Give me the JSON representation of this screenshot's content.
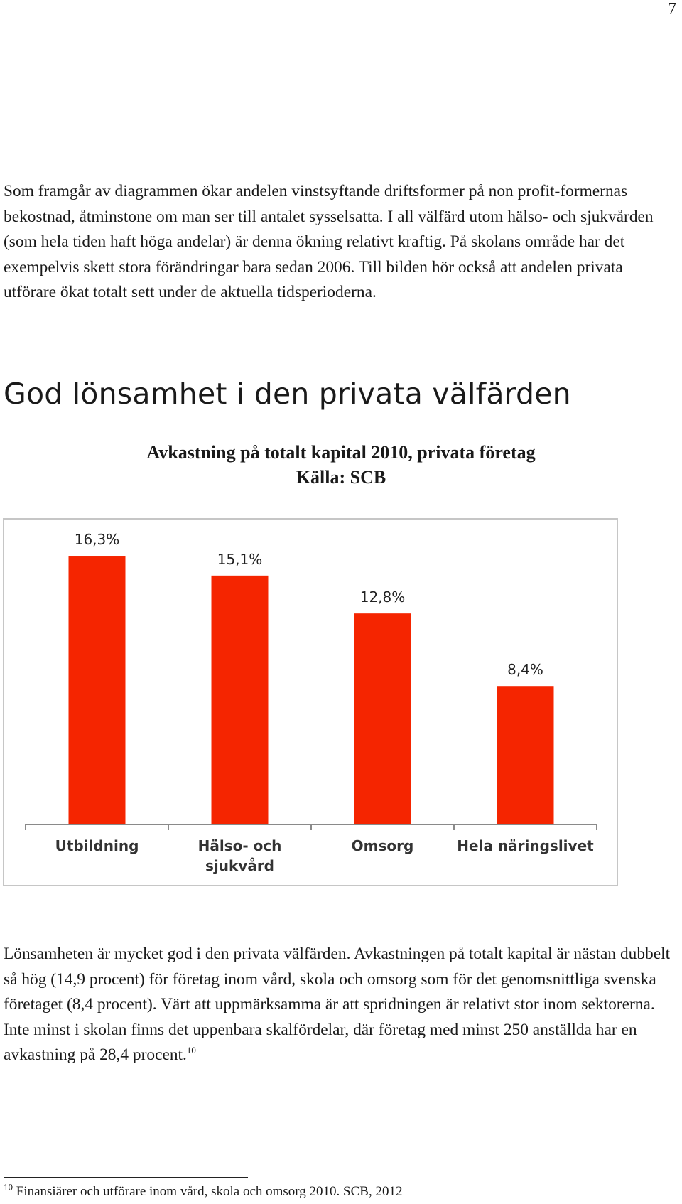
{
  "page_number": "7",
  "intro_paragraph": "Som framgår av diagrammen ökar andelen vinstsyftande driftsformer på non profit-formernas bekostnad, åtminstone om man ser till antalet sysselsatta. I all välfärd utom hälso- och sjukvården (som hela tiden haft höga andelar) är denna ökning relativt kraftig. På skolans område har det exempelvis skett stora förändringar bara sedan 2006. Till bilden hör också att andelen privata utförare ökat totalt sett under de aktuella tidsperioderna.",
  "section_heading": "God lönsamhet i den privata välfärden",
  "chart_title": "Avkastning på totalt kapital 2010, privata företag",
  "chart_source": "Källa: SCB",
  "body_paragraph": "Lönsamheten är mycket god i den privata välfärden. Avkastningen på totalt kapital är nästan dubbelt så hög (14,9 procent) för företag inom vård, skola och omsorg som för det genomsnittliga svenska företaget (8,4 procent). Värt att uppmärksamma är att spridningen är relativt stor inom sektorerna. Inte minst i skolan finns det uppenbara skalfördelar, där företag med minst 250 anställda har en avkastning på 28,4 procent.",
  "footnote_ref": "10",
  "footnote_number": "10",
  "footnote_text": "Finansiärer och utförare inom vård, skola och omsorg 2010. SCB, 2012",
  "chart_data": {
    "type": "bar",
    "categories": [
      [
        "Utbildning"
      ],
      [
        "Hälso- och",
        "sjukvård"
      ],
      [
        "Omsorg"
      ],
      [
        "Hela näringslivet"
      ]
    ],
    "values": [
      16.3,
      15.1,
      12.8,
      8.4
    ],
    "value_labels": [
      "16,3%",
      "15,1%",
      "12,8%",
      "8,4%"
    ],
    "bar_color": "#f52500",
    "ylim": [
      0,
      18.5
    ],
    "grid": false,
    "legend": "none"
  }
}
